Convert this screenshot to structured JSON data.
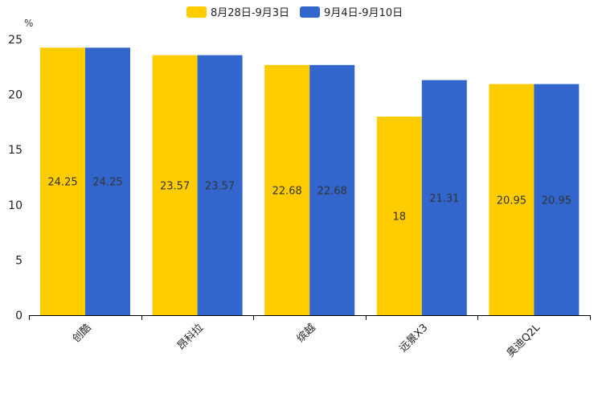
{
  "chart_data": {
    "type": "bar",
    "title": "",
    "ylabel": "%",
    "xlabel": "",
    "ylim": [
      0,
      25
    ],
    "yticks": [
      0,
      5,
      10,
      15,
      20,
      25
    ],
    "categories": [
      "创酷",
      "昂科拉",
      "缤越",
      "远景X3",
      "奥迪Q2L"
    ],
    "series": [
      {
        "name": "8月28日-9月3日",
        "color": "#FFCC00",
        "values": [
          24.25,
          23.57,
          22.68,
          18,
          20.95
        ]
      },
      {
        "name": "9月4日-9月10日",
        "color": "#3366CC",
        "values": [
          24.25,
          23.57,
          22.68,
          21.31,
          20.95
        ]
      }
    ],
    "legend": "top-center",
    "grid": false
  }
}
